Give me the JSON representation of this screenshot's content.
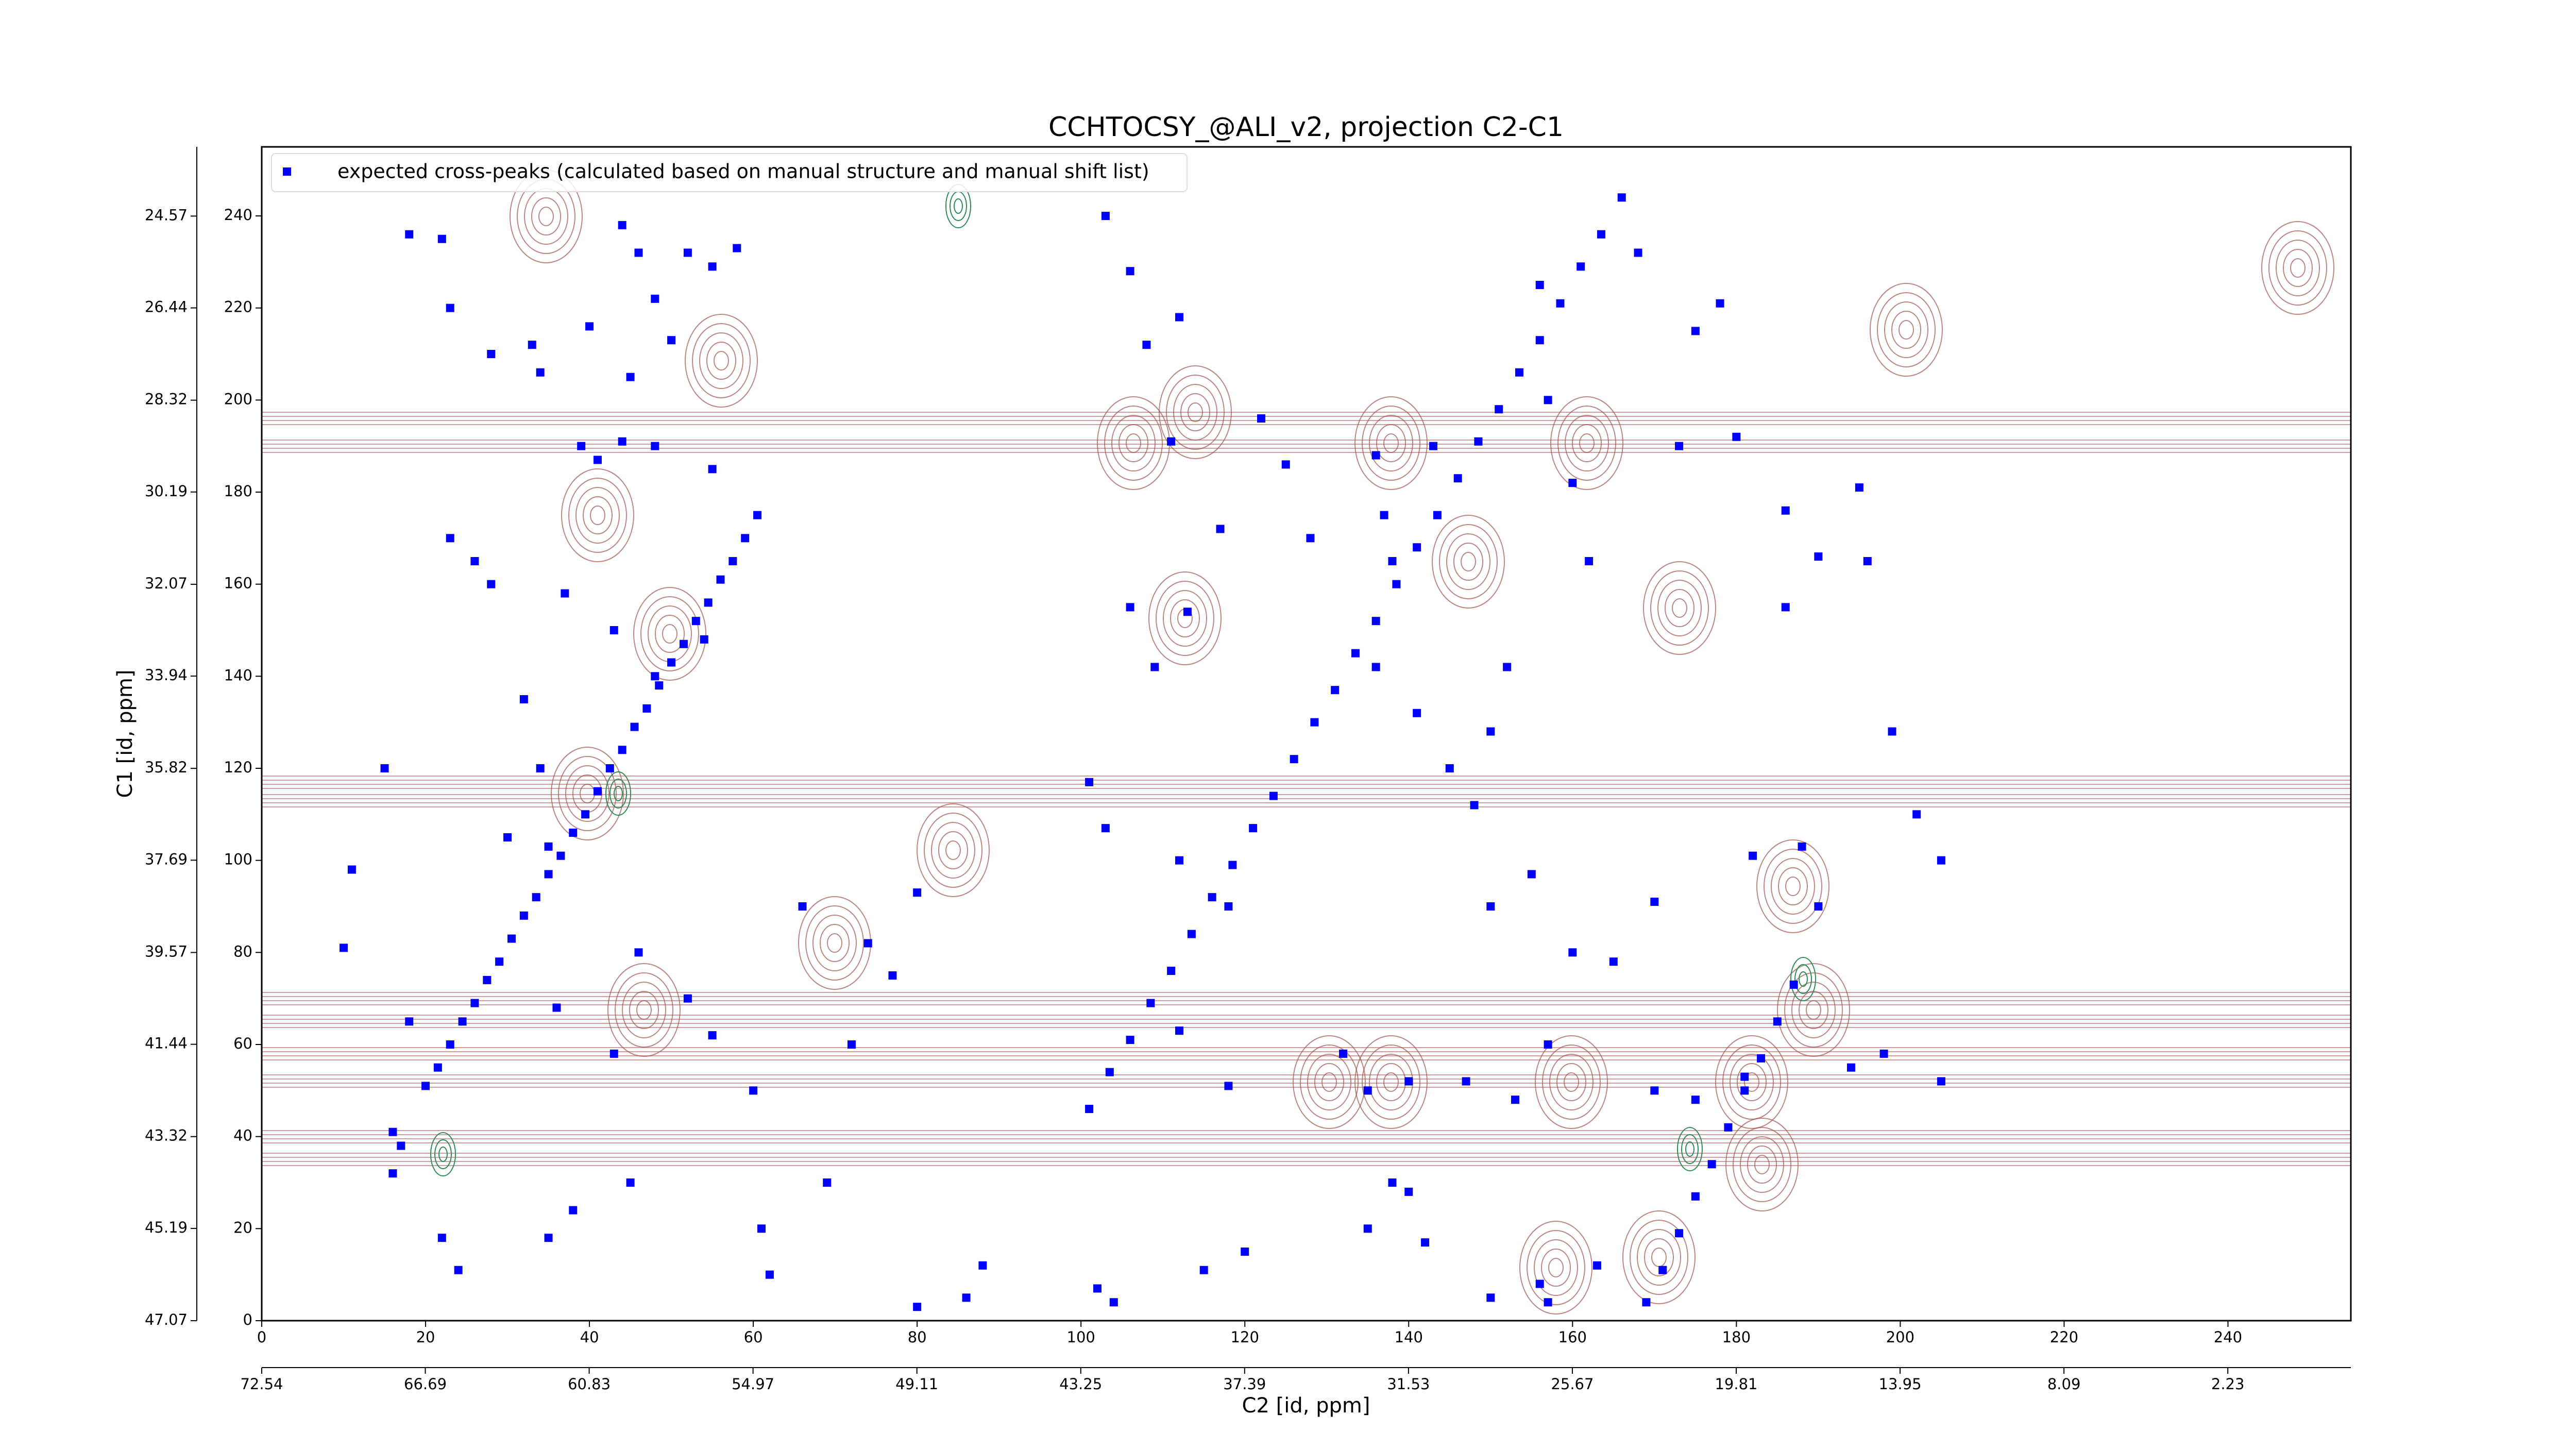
{
  "chart_data": {
    "type": "scatter",
    "title": "CCHTOCSY_@ALI_v2, projection C2-C1",
    "xlabel": "C2 [id, ppm]",
    "ylabel": "C1 [id, ppm]",
    "xlim": [
      0,
      255
    ],
    "ylim": [
      0,
      255
    ],
    "xticks": [
      0,
      20,
      40,
      60,
      80,
      100,
      120,
      140,
      160,
      180,
      200,
      220,
      240
    ],
    "yticks": [
      0,
      20,
      40,
      60,
      80,
      100,
      120,
      140,
      160,
      180,
      200,
      220,
      240
    ],
    "x2lim": [
      72.54,
      -2.17
    ],
    "x2ticks": [
      72.54,
      66.69,
      60.83,
      54.97,
      49.11,
      43.25,
      37.39,
      31.53,
      25.67,
      19.81,
      13.95,
      8.09,
      2.23
    ],
    "y2lim": [
      47.07,
      23.16
    ],
    "y2ticks": [
      47.07,
      45.19,
      43.32,
      41.44,
      39.57,
      37.69,
      35.82,
      33.94,
      32.07,
      30.19,
      28.32,
      26.44,
      24.57
    ],
    "legend": "upper left",
    "series": [
      {
        "name": "expected cross-peaks (calculated based on manual structure and manual shift list)",
        "color": "#0000ff",
        "x": [
          20,
          21.5,
          23,
          24.5,
          26,
          27.5,
          29,
          30.5,
          32,
          33.5,
          35,
          36.5,
          38,
          39.5,
          41,
          42.5,
          44,
          45.5,
          47,
          48.5,
          50,
          51.5,
          53,
          54.5,
          56,
          57.5,
          59,
          60.5,
          101,
          103.5,
          106,
          108.5,
          111,
          113.5,
          116,
          118.5,
          121,
          123.5,
          126,
          128.5,
          131,
          133.5,
          136,
          138.5,
          141,
          143.5,
          146,
          148.5,
          151,
          153.5,
          156,
          158.5,
          161,
          163.5,
          166,
          169,
          171,
          173,
          175,
          177,
          179,
          181,
          183,
          185,
          187,
          18,
          22,
          44,
          46,
          52,
          55,
          58,
          23,
          28,
          33,
          34,
          40,
          48,
          50,
          45,
          39,
          41,
          44,
          48,
          55,
          23,
          26,
          28,
          37,
          43,
          48,
          54,
          15,
          32,
          34,
          30,
          35,
          11,
          10,
          18,
          16,
          17,
          16,
          22,
          24,
          36,
          46,
          52,
          55,
          43,
          60,
          66,
          74,
          72,
          103,
          106,
          108,
          112,
          111,
          122,
          125,
          117,
          113,
          106,
          109,
          101,
          103,
          112,
          118,
          128,
          136,
          137,
          143,
          138,
          136,
          141,
          145,
          148,
          150,
          152,
          160,
          162,
          157,
          156,
          173,
          175,
          168,
          178,
          180,
          186,
          190,
          186,
          195,
          196,
          199,
          202,
          205,
          188,
          190,
          182,
          157,
          153,
          147,
          140,
          135,
          132,
          170,
          175,
          181,
          194,
          198,
          205,
          150,
          155,
          160,
          165,
          170,
          138,
          140,
          142,
          135,
          120,
          115,
          102,
          104,
          163,
          150,
          157,
          156,
          88,
          86,
          80,
          62,
          61,
          45,
          38,
          35,
          69,
          112,
          118,
          80,
          77
        ],
        "y": [
          51,
          55,
          60,
          65,
          69,
          74,
          78,
          83,
          88,
          92,
          97,
          101,
          106,
          110,
          115,
          120,
          124,
          129,
          133,
          138,
          143,
          147,
          152,
          156,
          161,
          165,
          170,
          175,
          46,
          54,
          61,
          69,
          76,
          84,
          92,
          99,
          107,
          114,
          122,
          130,
          137,
          145,
          152,
          160,
          168,
          175,
          183,
          191,
          198,
          206,
          213,
          221,
          229,
          236,
          244,
          4,
          11,
          19,
          27,
          34,
          42,
          50,
          57,
          65,
          73,
          236,
          235,
          238,
          232,
          232,
          229,
          233,
          220,
          210,
          212,
          206,
          216,
          222,
          213,
          205,
          190,
          187,
          191,
          190,
          185,
          170,
          165,
          160,
          158,
          150,
          140,
          148,
          120,
          135,
          120,
          105,
          103,
          98,
          81,
          65,
          41,
          38,
          32,
          18,
          11,
          68,
          80,
          70,
          62,
          58,
          50,
          90,
          82,
          60,
          240,
          228,
          212,
          218,
          191,
          196,
          186,
          172,
          154,
          155,
          142,
          117,
          107,
          100,
          90,
          170,
          188,
          175,
          190,
          165,
          142,
          132,
          120,
          112,
          128,
          142,
          182,
          165,
          200,
          225,
          190,
          215,
          232,
          221,
          192,
          176,
          166,
          155,
          181,
          165,
          128,
          110,
          100,
          103,
          90,
          101,
          60,
          48,
          52,
          52,
          50,
          58,
          50,
          48,
          53,
          55,
          58,
          52,
          90,
          97,
          80,
          78,
          91,
          30,
          28,
          17,
          20,
          15,
          11,
          7,
          4,
          12,
          5,
          4,
          8,
          12,
          5,
          3,
          10,
          20,
          30,
          24,
          18,
          30,
          63,
          51,
          93,
          75
        ]
      }
    ]
  }
}
